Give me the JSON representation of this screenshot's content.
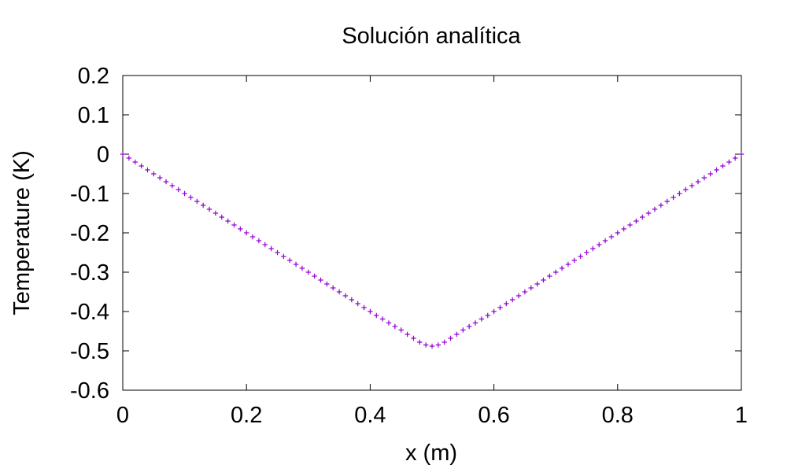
{
  "chart_data": {
    "type": "scatter",
    "title": "Solución analítica",
    "xlabel": "x (m)",
    "ylabel": "Temperature (K)",
    "xlim": [
      0,
      1
    ],
    "ylim": [
      -0.6,
      0.2
    ],
    "xticks": [
      0,
      0.2,
      0.4,
      0.6,
      0.8,
      1
    ],
    "xtick_labels": [
      "0",
      "0.2",
      "0.4",
      "0.6",
      "0.8",
      "1"
    ],
    "yticks": [
      0.2,
      0.1,
      0,
      -0.1,
      -0.2,
      -0.3,
      -0.4,
      -0.5,
      -0.6
    ],
    "ytick_labels": [
      "0.2",
      "0.1",
      "0",
      "-0.1",
      "-0.2",
      "-0.3",
      "-0.4",
      "-0.5",
      "-0.6"
    ],
    "grid": false,
    "marker": "+",
    "color": "#9400d3",
    "series": [
      {
        "name": "Solución analítica",
        "x": [
          0.0,
          0.01,
          0.02,
          0.03,
          0.04,
          0.05,
          0.06,
          0.07,
          0.08,
          0.09,
          0.1,
          0.11,
          0.12,
          0.13,
          0.14,
          0.15,
          0.16,
          0.17,
          0.18,
          0.19,
          0.2,
          0.21,
          0.22,
          0.23,
          0.24,
          0.25,
          0.26,
          0.27,
          0.28,
          0.29,
          0.3,
          0.31,
          0.32,
          0.33,
          0.34,
          0.35,
          0.36,
          0.37,
          0.38,
          0.39,
          0.4,
          0.41,
          0.42,
          0.43,
          0.44,
          0.45,
          0.46,
          0.47,
          0.48,
          0.49,
          0.5,
          0.51,
          0.52,
          0.53,
          0.54,
          0.55,
          0.56,
          0.57,
          0.58,
          0.59,
          0.6,
          0.61,
          0.62,
          0.63,
          0.64,
          0.65,
          0.66,
          0.67,
          0.68,
          0.69,
          0.7,
          0.71,
          0.72,
          0.73,
          0.74,
          0.75,
          0.76,
          0.77,
          0.78,
          0.79,
          0.8,
          0.81,
          0.82,
          0.83,
          0.84,
          0.85,
          0.86,
          0.87,
          0.88,
          0.89,
          0.9,
          0.91,
          0.92,
          0.93,
          0.94,
          0.95,
          0.96,
          0.97,
          0.98,
          0.99,
          1.0
        ],
        "y": [
          0.0,
          -0.01,
          -0.02,
          -0.03,
          -0.04,
          -0.05,
          -0.06,
          -0.07,
          -0.08,
          -0.09,
          -0.1,
          -0.11,
          -0.12,
          -0.13,
          -0.14,
          -0.15,
          -0.16,
          -0.17,
          -0.18,
          -0.19,
          -0.2,
          -0.21,
          -0.22,
          -0.23,
          -0.24,
          -0.25,
          -0.26,
          -0.27,
          -0.28,
          -0.29,
          -0.3,
          -0.31,
          -0.32,
          -0.33,
          -0.34,
          -0.35,
          -0.36,
          -0.37,
          -0.38,
          -0.39,
          -0.4,
          -0.41,
          -0.419,
          -0.429,
          -0.438,
          -0.447,
          -0.458,
          -0.468,
          -0.478,
          -0.485,
          -0.488,
          -0.485,
          -0.478,
          -0.468,
          -0.458,
          -0.447,
          -0.438,
          -0.429,
          -0.419,
          -0.41,
          -0.4,
          -0.39,
          -0.38,
          -0.37,
          -0.36,
          -0.35,
          -0.34,
          -0.33,
          -0.32,
          -0.31,
          -0.3,
          -0.29,
          -0.28,
          -0.27,
          -0.26,
          -0.25,
          -0.24,
          -0.23,
          -0.22,
          -0.21,
          -0.2,
          -0.19,
          -0.18,
          -0.17,
          -0.16,
          -0.15,
          -0.14,
          -0.13,
          -0.12,
          -0.11,
          -0.1,
          -0.09,
          -0.08,
          -0.07,
          -0.06,
          -0.05,
          -0.04,
          -0.03,
          -0.02,
          -0.01,
          0.0
        ]
      }
    ]
  }
}
